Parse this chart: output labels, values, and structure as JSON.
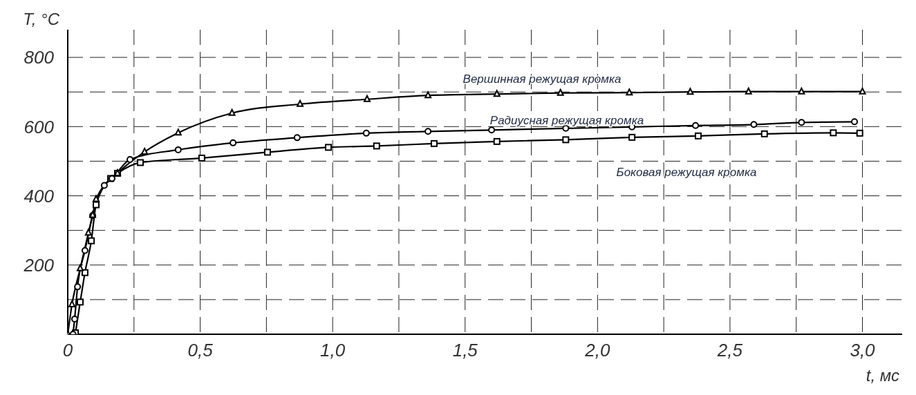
{
  "chart_data": {
    "type": "line",
    "xlabel": "t, мс",
    "ylabel": "T, °C",
    "xlim": [
      0,
      3.15
    ],
    "ylim": [
      0,
      880
    ],
    "xticks": [
      {
        "value": 0,
        "label": "0"
      },
      {
        "value": 0.25,
        "label": null
      },
      {
        "value": 0.5,
        "label": "0,5"
      },
      {
        "value": 0.75,
        "label": null
      },
      {
        "value": 1.0,
        "label": "1,0"
      },
      {
        "value": 1.25,
        "label": null
      },
      {
        "value": 1.5,
        "label": "1,5"
      },
      {
        "value": 1.75,
        "label": null
      },
      {
        "value": 2.0,
        "label": "2,0"
      },
      {
        "value": 2.25,
        "label": null
      },
      {
        "value": 2.5,
        "label": "2,5"
      },
      {
        "value": 2.75,
        "label": null
      },
      {
        "value": 3.0,
        "label": "3,0"
      }
    ],
    "yticks": [
      {
        "value": 0,
        "label": null
      },
      {
        "value": 100,
        "label": null
      },
      200,
      {
        "value": 300,
        "label": null
      },
      400,
      {
        "value": 500,
        "label": null
      },
      600,
      {
        "value": 700,
        "label": null
      },
      800
    ],
    "grid": true,
    "line_style": "solid",
    "series": [
      {
        "name": "Вершинная режущая кромка",
        "color": "#000000",
        "marker": "triangle",
        "x": [
          0,
          0.016,
          0.047,
          0.078,
          0.094,
          0.107,
          0.188,
          0.29,
          0.417,
          0.62,
          0.877,
          1.13,
          1.36,
          1.62,
          1.86,
          2.12,
          2.35,
          2.57,
          2.77,
          3.0
        ],
        "values": [
          0,
          86,
          190,
          293,
          344,
          390,
          465,
          527,
          582,
          639,
          665,
          679,
          690,
          694,
          697,
          698,
          700,
          701,
          701,
          701
        ]
      },
      {
        "name": "Радиусная режущая кромка",
        "color": "#000000",
        "marker": "circle",
        "x": [
          0.02,
          0.026,
          0.037,
          0.065,
          0.094,
          0.138,
          0.167,
          0.235,
          0.417,
          0.624,
          0.866,
          1.127,
          1.36,
          1.6,
          1.88,
          2.13,
          2.37,
          2.59,
          2.77,
          2.97
        ],
        "values": [
          0,
          44,
          137,
          242,
          343,
          430,
          450,
          505,
          533,
          553,
          568,
          581,
          586,
          590,
          595,
          599,
          603,
          606,
          612,
          614
        ]
      },
      {
        "name": "Боковая режущая кромка",
        "color": "#000000",
        "marker": "square",
        "x": [
          0.029,
          0.047,
          0.065,
          0.089,
          0.107,
          0.162,
          0.188,
          0.274,
          0.506,
          0.754,
          0.984,
          1.166,
          1.383,
          1.62,
          1.88,
          2.13,
          2.38,
          2.63,
          2.89,
          2.99
        ],
        "values": [
          4,
          93,
          178,
          270,
          374,
          450,
          465,
          496,
          509,
          526,
          540,
          544,
          551,
          557,
          562,
          569,
          573,
          579,
          582,
          581
        ]
      }
    ]
  }
}
